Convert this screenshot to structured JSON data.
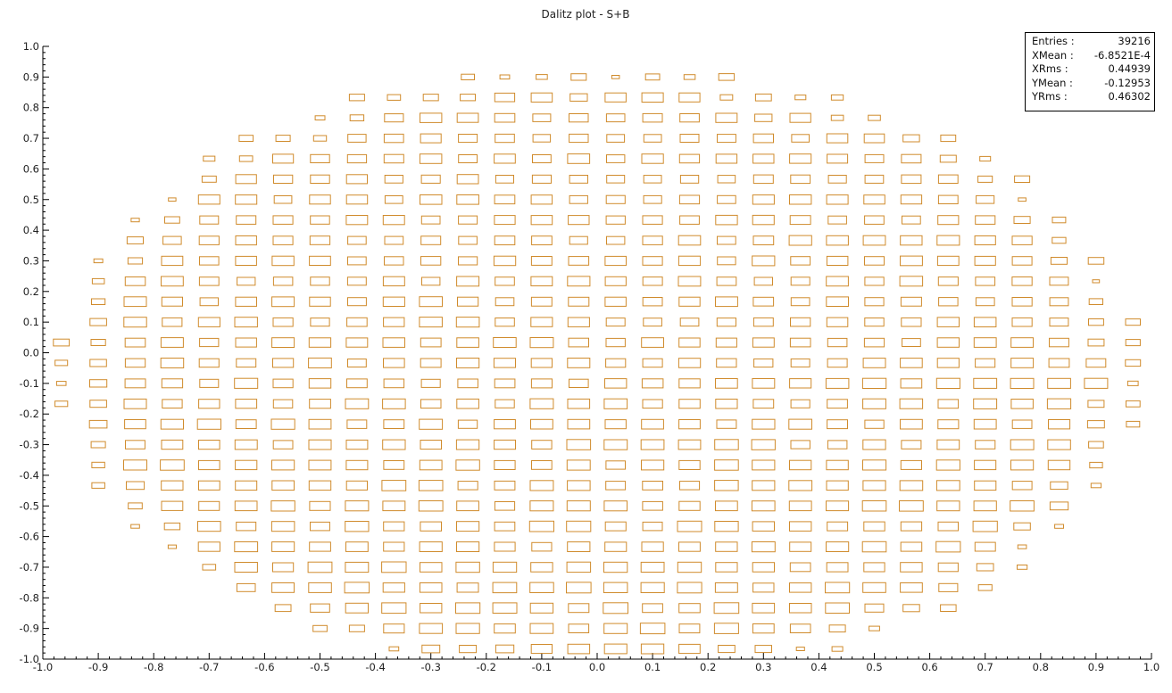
{
  "chart_data": {
    "type": "heatmap",
    "style": "box",
    "title": "Dalitz plot - S+B",
    "xlabel": "",
    "ylabel": "",
    "xlim": [
      -1.0,
      1.0
    ],
    "ylim": [
      -1.0,
      1.0
    ],
    "x_ticks": [
      "-1.0",
      "-0.9",
      "-0.8",
      "-0.7",
      "-0.6",
      "-0.5",
      "-0.4",
      "-0.3",
      "-0.2",
      "-0.1",
      "0.0",
      "0.1",
      "0.2",
      "0.3",
      "0.4",
      "0.5",
      "0.6",
      "0.7",
      "0.8",
      "0.9",
      "1.0"
    ],
    "y_ticks": [
      "-1.0",
      "-0.9",
      "-0.8",
      "-0.7",
      "-0.6",
      "-0.5",
      "-0.4",
      "-0.3",
      "-0.2",
      "-0.1",
      "0.0",
      "0.1",
      "0.2",
      "0.3",
      "0.4",
      "0.5",
      "0.6",
      "0.7",
      "0.8",
      "0.9",
      "1.0"
    ],
    "bin_grid": {
      "nx": 30,
      "ny": 30,
      "x_range": [
        -1.0,
        1.0
      ],
      "y_range": [
        -1.0,
        1.0
      ]
    },
    "allowed_region": {
      "cx": 0.005,
      "cy": -0.065,
      "rx": 0.975,
      "ry": 0.995
    },
    "approx_bin_content": 55,
    "grid": false,
    "box_color": "#d08b2c",
    "stats": {
      "entries": {
        "label": "Entries :",
        "value": "39216"
      },
      "xmean": {
        "label": "XMean :",
        "value": "-6.8521E-4"
      },
      "xrms": {
        "label": "XRms :",
        "value": "0.44939"
      },
      "ymean": {
        "label": "YMean :",
        "value": "-0.12953"
      },
      "yrms": {
        "label": "YRms :",
        "value": "0.46302"
      }
    },
    "stats_placement": "top-right"
  }
}
